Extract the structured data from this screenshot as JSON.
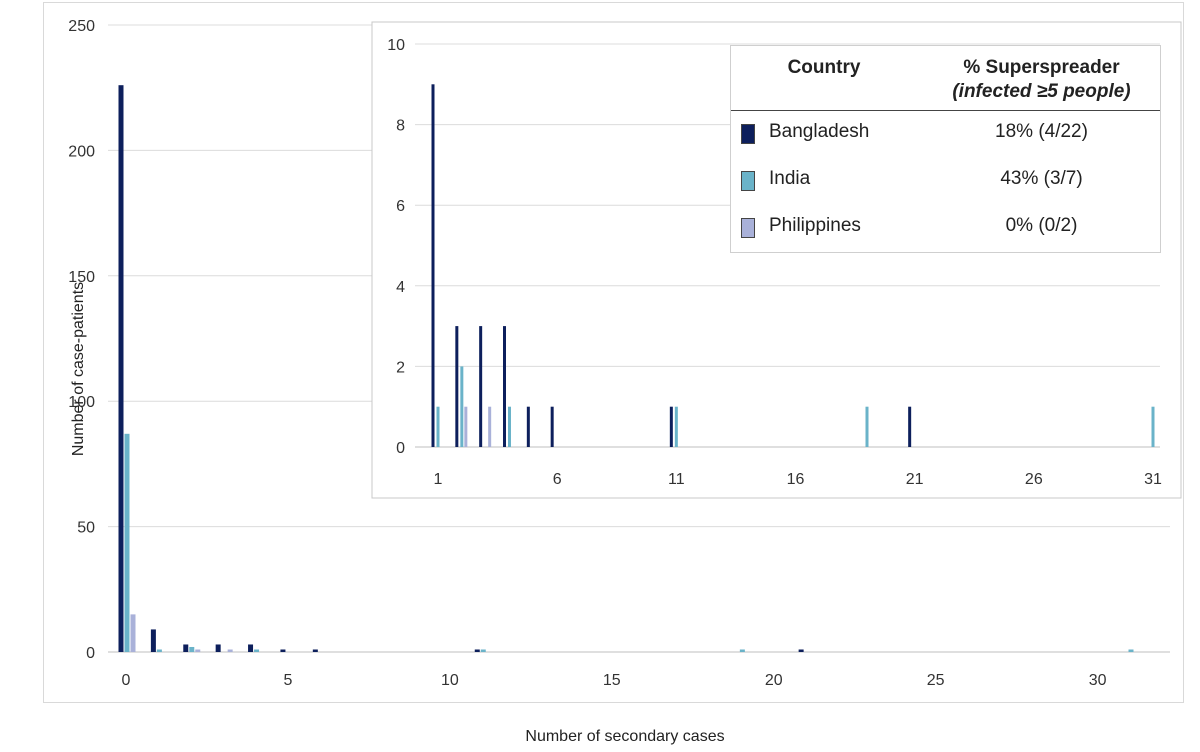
{
  "chart_data": [
    {
      "type": "bar",
      "xlabel": "Number of secondary cases",
      "ylabel": "Number of case-patients",
      "xlim": [
        0,
        31
      ],
      "ylim": [
        0,
        250
      ],
      "x_ticks": [
        "0",
        "5",
        "10",
        "15",
        "20",
        "25",
        "30"
      ],
      "y_ticks": [
        "0",
        "50",
        "100",
        "150",
        "200",
        "250"
      ],
      "grid": "horizontal",
      "series": [
        {
          "name": "Bangladesh",
          "color": "#0d1f5c",
          "points": [
            [
              0,
              226
            ],
            [
              1,
              9
            ],
            [
              2,
              3
            ],
            [
              3,
              3
            ],
            [
              4,
              3
            ],
            [
              5,
              1
            ],
            [
              6,
              1
            ],
            [
              11,
              1
            ],
            [
              21,
              1
            ]
          ]
        },
        {
          "name": "India",
          "color": "#6ab3c9",
          "points": [
            [
              0,
              87
            ],
            [
              1,
              1
            ],
            [
              2,
              2
            ],
            [
              4,
              1
            ],
            [
              11,
              1
            ],
            [
              19,
              1
            ],
            [
              31,
              1
            ]
          ]
        },
        {
          "name": "Philippines",
          "color": "#a9b1d9",
          "points": [
            [
              0,
              15
            ],
            [
              2,
              1
            ],
            [
              3,
              1
            ]
          ]
        }
      ]
    },
    {
      "type": "bar",
      "role": "inset",
      "xlim": [
        1,
        31
      ],
      "ylim": [
        0,
        10
      ],
      "x_ticks": [
        "1",
        "6",
        "11",
        "16",
        "21",
        "26",
        "31"
      ],
      "y_ticks": [
        "0",
        "2",
        "4",
        "6",
        "8",
        "10"
      ],
      "grid": "horizontal",
      "series": [
        {
          "name": "Bangladesh",
          "color": "#0d1f5c",
          "points": [
            [
              1,
              9
            ],
            [
              2,
              3
            ],
            [
              3,
              3
            ],
            [
              4,
              3
            ],
            [
              5,
              1
            ],
            [
              6,
              1
            ],
            [
              11,
              1
            ],
            [
              21,
              1
            ]
          ]
        },
        {
          "name": "India",
          "color": "#6ab3c9",
          "points": [
            [
              1,
              1
            ],
            [
              2,
              2
            ],
            [
              4,
              1
            ],
            [
              11,
              1
            ],
            [
              19,
              1
            ],
            [
              31,
              1
            ]
          ]
        },
        {
          "name": "Philippines",
          "color": "#a9b1d9",
          "points": [
            [
              2,
              1
            ],
            [
              3,
              1
            ]
          ]
        }
      ]
    }
  ],
  "legend": {
    "col_country": "Country",
    "col_pct_line1": "% Superspreader",
    "col_pct_line2": "(infected ≥5 people)",
    "rows": [
      {
        "country": "Bangladesh",
        "value": "18% (4/22)",
        "color": "#0d1f5c"
      },
      {
        "country": "India",
        "value": "43% (3/7)",
        "color": "#6ab3c9"
      },
      {
        "country": "Philippines",
        "value": "0% (0/2)",
        "color": "#a9b1d9"
      }
    ]
  }
}
